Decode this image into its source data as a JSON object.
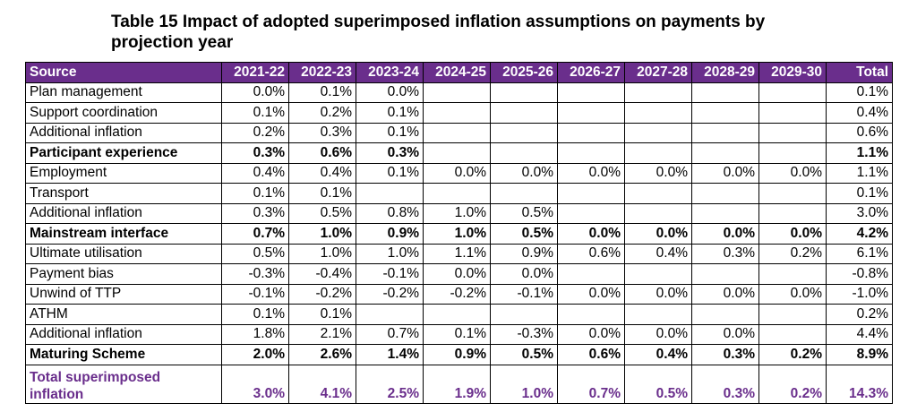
{
  "title": "Table 15 Impact of adopted superimposed inflation assumptions on payments by projection year",
  "colors": {
    "header_bg": "#6a2e8c",
    "total_text": "#6a2e8c"
  },
  "columns": [
    "Source",
    "2021-22",
    "2022-23",
    "2023-24",
    "2024-25",
    "2025-26",
    "2026-27",
    "2027-28",
    "2028-29",
    "2029-30",
    "Total"
  ],
  "rows": [
    {
      "label": "Plan management",
      "bold": false,
      "values": [
        "0.0%",
        "0.1%",
        "0.0%",
        "",
        "",
        "",
        "",
        "",
        "",
        "0.1%"
      ]
    },
    {
      "label": "Support coordination",
      "bold": false,
      "values": [
        "0.1%",
        "0.2%",
        "0.1%",
        "",
        "",
        "",
        "",
        "",
        "",
        "0.4%"
      ]
    },
    {
      "label": "Additional inflation",
      "bold": false,
      "values": [
        "0.2%",
        "0.3%",
        "0.1%",
        "",
        "",
        "",
        "",
        "",
        "",
        "0.6%"
      ]
    },
    {
      "label": "Participant experience",
      "bold": true,
      "values": [
        "0.3%",
        "0.6%",
        "0.3%",
        "",
        "",
        "",
        "",
        "",
        "",
        "1.1%"
      ]
    },
    {
      "label": "Employment",
      "bold": false,
      "values": [
        "0.4%",
        "0.4%",
        "0.1%",
        "0.0%",
        "0.0%",
        "0.0%",
        "0.0%",
        "0.0%",
        "0.0%",
        "1.1%"
      ]
    },
    {
      "label": "Transport",
      "bold": false,
      "values": [
        "0.1%",
        "0.1%",
        "",
        "",
        "",
        "",
        "",
        "",
        "",
        "0.1%"
      ]
    },
    {
      "label": "Additional inflation",
      "bold": false,
      "values": [
        "0.3%",
        "0.5%",
        "0.8%",
        "1.0%",
        "0.5%",
        "",
        "",
        "",
        "",
        "3.0%"
      ]
    },
    {
      "label": "Mainstream interface",
      "bold": true,
      "values": [
        "0.7%",
        "1.0%",
        "0.9%",
        "1.0%",
        "0.5%",
        "0.0%",
        "0.0%",
        "0.0%",
        "0.0%",
        "4.2%"
      ]
    },
    {
      "label": "Ultimate utilisation",
      "bold": false,
      "values": [
        "0.5%",
        "1.0%",
        "1.0%",
        "1.1%",
        "0.9%",
        "0.6%",
        "0.4%",
        "0.3%",
        "0.2%",
        "6.1%"
      ]
    },
    {
      "label": "Payment bias",
      "bold": false,
      "values": [
        "-0.3%",
        "-0.4%",
        "-0.1%",
        "0.0%",
        "0.0%",
        "",
        "",
        "",
        "",
        "-0.8%"
      ]
    },
    {
      "label": "Unwind of TTP",
      "bold": false,
      "values": [
        "-0.1%",
        "-0.2%",
        "-0.2%",
        "-0.2%",
        "-0.1%",
        "0.0%",
        "0.0%",
        "0.0%",
        "0.0%",
        "-1.0%"
      ]
    },
    {
      "label": "ATHM",
      "bold": false,
      "values": [
        "0.1%",
        "0.1%",
        "",
        "",
        "",
        "",
        "",
        "",
        "",
        "0.2%"
      ]
    },
    {
      "label": "Additional inflation",
      "bold": false,
      "values": [
        "1.8%",
        "2.1%",
        "0.7%",
        "0.1%",
        "-0.3%",
        "0.0%",
        "0.0%",
        "0.0%",
        "",
        "4.4%"
      ]
    },
    {
      "label": "Maturing Scheme",
      "bold": true,
      "values": [
        "2.0%",
        "2.6%",
        "1.4%",
        "0.9%",
        "0.5%",
        "0.6%",
        "0.4%",
        "0.3%",
        "0.2%",
        "8.9%"
      ]
    }
  ],
  "total_row": {
    "label": "Total superimposed inflation",
    "values": [
      "3.0%",
      "4.1%",
      "2.5%",
      "1.9%",
      "1.0%",
      "0.7%",
      "0.5%",
      "0.3%",
      "0.2%",
      "14.3%"
    ]
  }
}
